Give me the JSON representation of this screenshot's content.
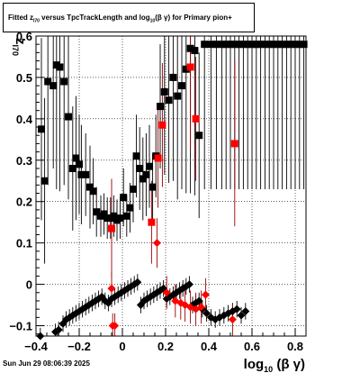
{
  "title": {
    "pre": "Fitted  z",
    "sub1": "I70",
    "mid": " versus TpcTrackLength and log",
    "sub2": "10",
    "post": "(β  γ) for Primary pion+"
  },
  "footer": {
    "timestamp": "Sun Jun 29 08:06:39 2025"
  },
  "chart_data": {
    "type": "scatter",
    "xlim": [
      -0.4,
      0.85
    ],
    "ylim": [
      -0.125,
      0.6
    ],
    "x_ticks": [
      -0.4,
      -0.2,
      0,
      0.2,
      0.4,
      0.6,
      0.8
    ],
    "x_tick_labels": [
      "−0.4",
      "−0.2",
      "0",
      "0.2",
      "0.4",
      "0.6",
      "0.8"
    ],
    "y_ticks": [
      -0.1,
      0,
      0.1,
      0.2,
      0.3,
      0.4,
      0.5,
      0.6
    ],
    "y_tick_labels": [
      "−0.1",
      "0",
      "0.1",
      "0.2",
      "0.3",
      "0.4",
      "0.5",
      "0.6"
    ],
    "xlabel": {
      "pre": "log",
      "sub": "10",
      "post": " (β γ)"
    },
    "ylabel": {
      "pre": "z",
      "sub": "I70"
    },
    "grid": true,
    "colors": {
      "black": "#000000",
      "red": "#ff0000",
      "errbar_red": "#9b0000"
    },
    "series": [
      {
        "marker": "square",
        "color": "black",
        "points": [
          [
            -0.375,
            0.375,
            0.22
          ],
          [
            -0.36,
            0.25,
            0.2
          ],
          [
            -0.345,
            0.49,
            0.25
          ],
          [
            -0.32,
            0.48,
            0.2
          ],
          [
            -0.305,
            0.53,
            0.3
          ],
          [
            -0.29,
            0.525,
            0.3
          ],
          [
            -0.27,
            0.49,
            0.25
          ],
          [
            -0.25,
            0.405,
            0.2
          ],
          [
            -0.23,
            0.28,
            0.15
          ],
          [
            -0.215,
            0.305,
            0.15
          ],
          [
            -0.2,
            0.29,
            0.12
          ],
          [
            -0.19,
            0.265,
            0.12
          ],
          [
            -0.17,
            0.265,
            0.1
          ],
          [
            -0.15,
            0.235,
            0.1
          ],
          [
            -0.135,
            0.225,
            0.08
          ],
          [
            -0.12,
            0.175,
            0.06
          ],
          [
            -0.1,
            0.165,
            0.05
          ],
          [
            -0.085,
            0.17,
            0.05
          ],
          [
            -0.07,
            0.16,
            0.05
          ],
          [
            -0.055,
            0.16,
            0.05
          ],
          [
            -0.04,
            0.165,
            0.05
          ],
          [
            -0.025,
            0.155,
            0.05
          ],
          [
            -0.01,
            0.16,
            0.05
          ],
          [
            0.005,
            0.21,
            0.07
          ],
          [
            0.02,
            0.165,
            0.05
          ],
          [
            0.035,
            0.185,
            0.06
          ],
          [
            0.05,
            0.23,
            0.08
          ],
          [
            0.065,
            0.31,
            0.1
          ],
          [
            0.08,
            0.28,
            0.1
          ],
          [
            0.095,
            0.255,
            0.1
          ],
          [
            0.11,
            0.265,
            0.1
          ],
          [
            0.125,
            0.285,
            0.1
          ],
          [
            0.14,
            0.235,
            0.08
          ],
          [
            0.155,
            0.31,
            0.1
          ],
          [
            0.175,
            0.43,
            0.15
          ],
          [
            0.195,
            0.465,
            0.2
          ],
          [
            0.215,
            0.445,
            0.2
          ],
          [
            0.235,
            0.5,
            0.25
          ],
          [
            0.255,
            0.455,
            0.25
          ],
          [
            0.275,
            0.48,
            0.25
          ],
          [
            0.295,
            0.52,
            0.3
          ],
          [
            0.315,
            0.57,
            0.35
          ],
          [
            0.335,
            0.565,
            0.35
          ],
          [
            0.355,
            0.36,
            0.2
          ],
          [
            0.38,
            0.58,
            0.35
          ],
          [
            0.41,
            0.58,
            0.35
          ],
          [
            0.435,
            0.58,
            0.35
          ],
          [
            0.46,
            0.58,
            0.35
          ],
          [
            0.48,
            0.58,
            0.35
          ],
          [
            0.5,
            0.58,
            0.35
          ],
          [
            0.52,
            0.58,
            0.35
          ],
          [
            0.54,
            0.58,
            0.35
          ],
          [
            0.56,
            0.58,
            0.35
          ],
          [
            0.58,
            0.58,
            0.35
          ],
          [
            0.6,
            0.58,
            0.35
          ],
          [
            0.62,
            0.58,
            0.35
          ],
          [
            0.64,
            0.58,
            0.35
          ],
          [
            0.66,
            0.58,
            0.35
          ],
          [
            0.68,
            0.58,
            0.35
          ],
          [
            0.7,
            0.58,
            0.35
          ],
          [
            0.72,
            0.58,
            0.35
          ],
          [
            0.74,
            0.58,
            0.35
          ],
          [
            0.76,
            0.58,
            0.35
          ],
          [
            0.78,
            0.58,
            0.35
          ],
          [
            0.8,
            0.58,
            0.35
          ],
          [
            0.82,
            0.58,
            0.35
          ],
          [
            0.84,
            0.58,
            0.35
          ]
        ]
      },
      {
        "marker": "diamond",
        "color": "black",
        "points": [
          [
            -0.38,
            -0.125,
            0.02
          ],
          [
            -0.31,
            -0.115,
            0.02
          ],
          [
            -0.295,
            -0.11,
            0.02
          ],
          [
            -0.275,
            -0.095,
            0.02
          ],
          [
            -0.26,
            -0.085,
            0.02
          ],
          [
            -0.245,
            -0.08,
            0.02
          ],
          [
            -0.23,
            -0.075,
            0.02
          ],
          [
            -0.215,
            -0.07,
            0.02
          ],
          [
            -0.2,
            -0.065,
            0.02
          ],
          [
            -0.185,
            -0.06,
            0.02
          ],
          [
            -0.17,
            -0.055,
            0.02
          ],
          [
            -0.155,
            -0.05,
            0.02
          ],
          [
            -0.14,
            -0.045,
            0.02
          ],
          [
            -0.125,
            -0.04,
            0.02
          ],
          [
            -0.11,
            -0.035,
            0.02
          ],
          [
            -0.095,
            -0.03,
            0.02
          ],
          [
            -0.08,
            -0.04,
            0.02
          ],
          [
            -0.065,
            -0.045,
            0.02
          ],
          [
            -0.05,
            -0.035,
            0.02
          ],
          [
            -0.035,
            -0.03,
            0.02
          ],
          [
            -0.02,
            -0.025,
            0.02
          ],
          [
            -0.005,
            -0.02,
            0.02
          ],
          [
            0.01,
            -0.015,
            0.02
          ],
          [
            0.025,
            -0.01,
            0.02
          ],
          [
            0.04,
            -0.005,
            0.02
          ],
          [
            0.055,
            0.0,
            0.02
          ],
          [
            0.07,
            0.005,
            0.02
          ],
          [
            0.085,
            -0.05,
            0.02
          ],
          [
            0.1,
            -0.04,
            0.02
          ],
          [
            0.115,
            -0.035,
            0.02
          ],
          [
            0.13,
            -0.03,
            0.02
          ],
          [
            0.145,
            -0.025,
            0.02
          ],
          [
            0.16,
            -0.02,
            0.02
          ],
          [
            0.175,
            -0.015,
            0.02
          ],
          [
            0.19,
            -0.01,
            0.02
          ],
          [
            0.205,
            -0.035,
            0.02
          ],
          [
            0.22,
            -0.03,
            0.02
          ],
          [
            0.235,
            -0.025,
            0.02
          ],
          [
            0.25,
            -0.02,
            0.02
          ],
          [
            0.265,
            -0.015,
            0.02
          ],
          [
            0.28,
            -0.01,
            0.02
          ],
          [
            0.295,
            -0.005,
            0.02
          ],
          [
            0.31,
            0.0,
            0.02
          ],
          [
            0.325,
            -0.05,
            0.02
          ],
          [
            0.34,
            -0.045,
            0.02
          ],
          [
            0.355,
            -0.04,
            0.02
          ],
          [
            0.37,
            -0.06,
            0.02
          ],
          [
            0.39,
            -0.07,
            0.02
          ],
          [
            0.41,
            -0.08,
            0.02
          ],
          [
            0.43,
            -0.085,
            0.02
          ],
          [
            0.45,
            -0.08,
            0.02
          ],
          [
            0.47,
            -0.075,
            0.02
          ],
          [
            0.49,
            -0.07,
            0.02
          ],
          [
            0.51,
            -0.065,
            0.02
          ],
          [
            0.53,
            -0.06,
            0.02
          ],
          [
            0.55,
            -0.075,
            0.02
          ],
          [
            0.57,
            -0.065,
            0.02
          ]
        ]
      },
      {
        "marker": "square",
        "color": "red",
        "points": [
          [
            -0.05,
            0.135,
            0.12
          ],
          [
            0.135,
            0.15,
            0.1
          ],
          [
            0.165,
            0.305,
            0.12
          ],
          [
            0.185,
            0.385,
            0.15
          ],
          [
            0.315,
            0.525,
            0.2
          ],
          [
            0.34,
            0.4,
            0.15
          ],
          [
            0.52,
            0.34,
            0.2
          ]
        ]
      },
      {
        "marker": "diamond",
        "color": "red",
        "points": [
          [
            -0.05,
            -0.01,
            0.04
          ],
          [
            -0.045,
            -0.1,
            0.03
          ],
          [
            -0.035,
            -0.1,
            0.03
          ],
          [
            0.16,
            0.1,
            0.06
          ],
          [
            0.205,
            -0.02,
            0.04
          ],
          [
            0.245,
            -0.04,
            0.04
          ],
          [
            0.27,
            -0.045,
            0.04
          ],
          [
            0.29,
            -0.05,
            0.04
          ],
          [
            0.315,
            -0.055,
            0.04
          ],
          [
            0.34,
            -0.06,
            0.04
          ],
          [
            0.365,
            -0.055,
            0.04
          ],
          [
            0.385,
            -0.025,
            0.04
          ],
          [
            0.51,
            -0.085,
            0.04
          ]
        ]
      }
    ]
  }
}
